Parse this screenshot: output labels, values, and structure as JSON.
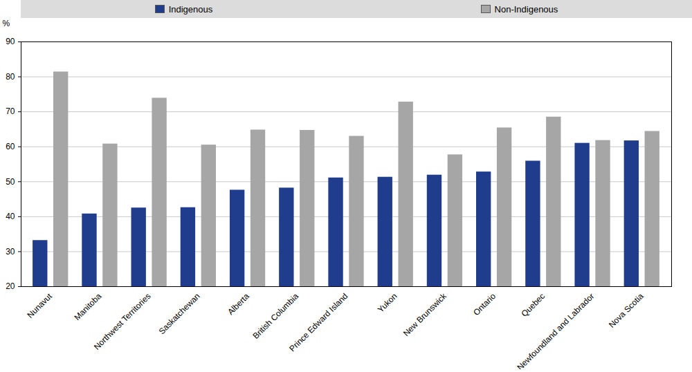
{
  "chart_data": {
    "type": "bar",
    "y_label": "%",
    "categories": [
      "Nunavut",
      "Manitoba",
      "Northwest Territories",
      "Saskatchewan",
      "Alberta",
      "British Columbia",
      "Prince Edward Island",
      "Yukon",
      "New Brunswick",
      "Ontario",
      "Quebec",
      "Newfoundland and Labrador",
      "Nova Scotia"
    ],
    "series": [
      {
        "name": "Indigenous",
        "color": "#203c8c",
        "values": [
          33.2,
          40.8,
          42.5,
          42.6,
          47.6,
          48.2,
          51.1,
          51.3,
          51.9,
          52.8,
          55.9,
          61.0,
          61.7
        ]
      },
      {
        "name": "Non-Indigenous",
        "color": "#a6a6a6",
        "values": [
          81.4,
          60.8,
          73.9,
          60.5,
          64.8,
          64.7,
          63.0,
          72.8,
          57.7,
          65.4,
          68.5,
          61.8,
          64.4
        ]
      }
    ],
    "ylim": [
      20,
      90
    ],
    "yticks": [
      20,
      30,
      40,
      50,
      60,
      70,
      80,
      90
    ],
    "grid": true,
    "legend": "top"
  }
}
